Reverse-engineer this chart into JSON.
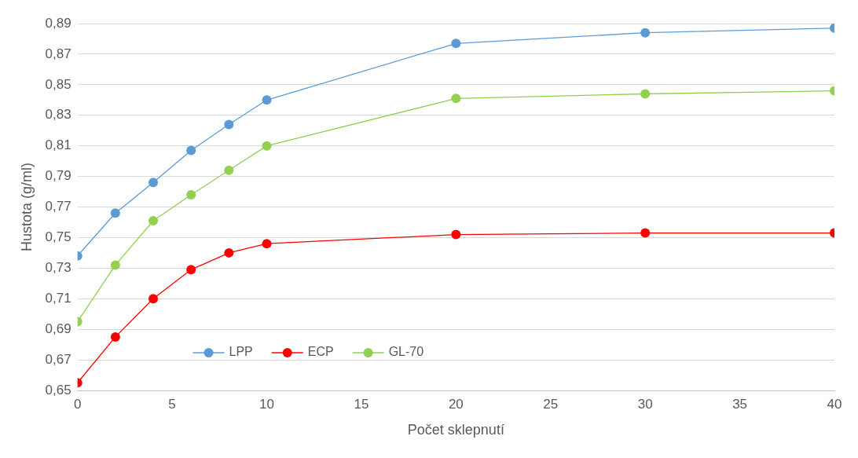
{
  "chart_data": {
    "type": "line",
    "xlabel": "Počet sklepnutí",
    "ylabel": "Hustota (g/ml)",
    "x": [
      0,
      2,
      4,
      6,
      8,
      10,
      20,
      30,
      40
    ],
    "series": [
      {
        "name": "LPP",
        "color": "#5b9bd5",
        "values": [
          0.738,
          0.766,
          0.786,
          0.807,
          0.824,
          0.84,
          0.877,
          0.884,
          0.887
        ]
      },
      {
        "name": "ECP",
        "color": "#ff0000",
        "values": [
          0.655,
          0.685,
          0.71,
          0.729,
          0.74,
          0.746,
          0.752,
          0.753,
          0.753
        ]
      },
      {
        "name": "GL-70",
        "color": "#92d050",
        "values": [
          0.695,
          0.732,
          0.761,
          0.778,
          0.794,
          0.81,
          0.841,
          0.844,
          0.846
        ]
      }
    ],
    "xlim": [
      0,
      40
    ],
    "xticks": [
      0,
      5,
      10,
      15,
      20,
      25,
      30,
      35,
      40
    ],
    "ylim": [
      0.65,
      0.89
    ],
    "yticks": [
      {
        "value": 0.65,
        "label": "0,65"
      },
      {
        "value": 0.67,
        "label": "0,67"
      },
      {
        "value": 0.69,
        "label": "0,69"
      },
      {
        "value": 0.71,
        "label": "0,71"
      },
      {
        "value": 0.73,
        "label": "0,73"
      },
      {
        "value": 0.75,
        "label": "0,75"
      },
      {
        "value": 0.77,
        "label": "0,77"
      },
      {
        "value": 0.79,
        "label": "0,79"
      },
      {
        "value": 0.81,
        "label": "0,81"
      },
      {
        "value": 0.83,
        "label": "0,83"
      },
      {
        "value": 0.85,
        "label": "0,85"
      },
      {
        "value": 0.87,
        "label": "0,87"
      },
      {
        "value": 0.89,
        "label": "0,89"
      }
    ],
    "grid": "y",
    "legend": "bottom",
    "marker": "circle",
    "line_style": "solid"
  }
}
